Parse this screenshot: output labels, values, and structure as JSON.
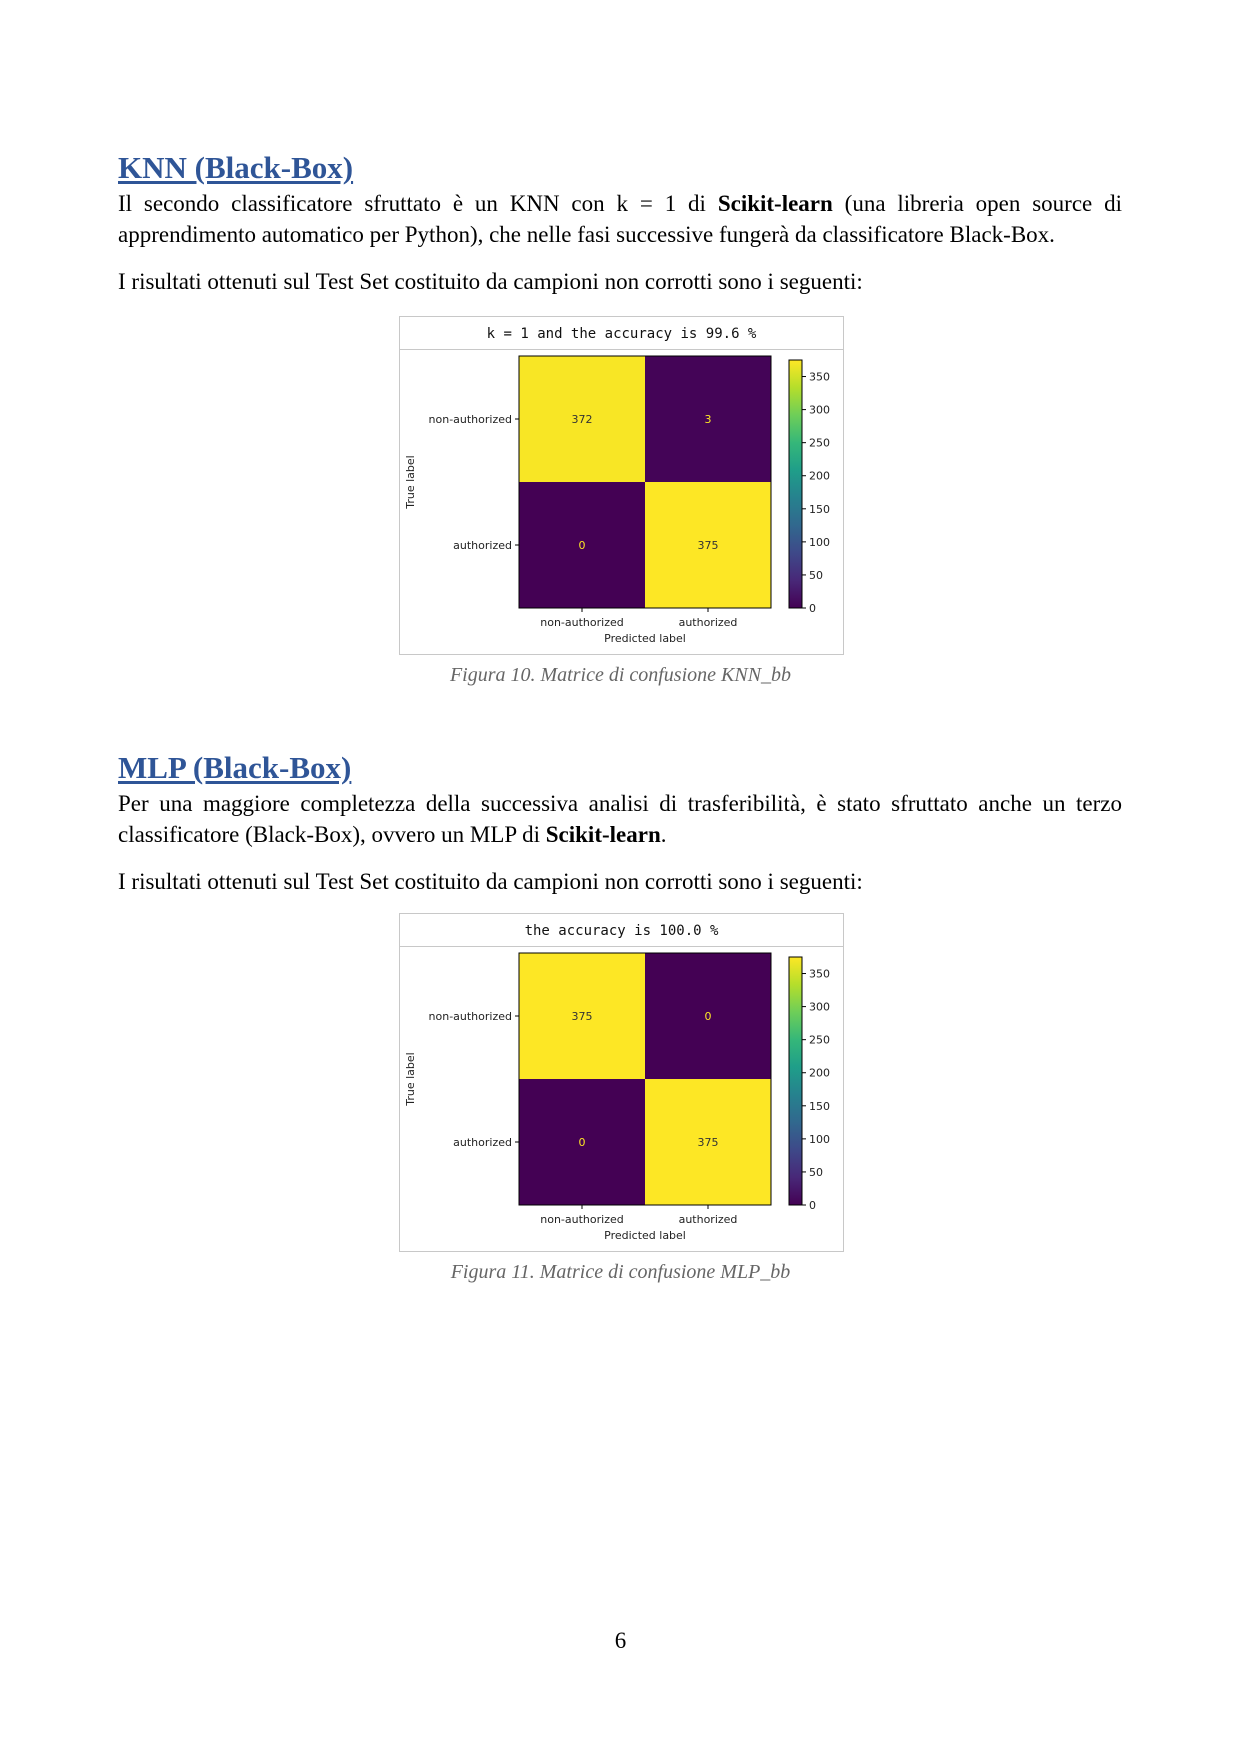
{
  "sections": [
    {
      "title": "KNN (Black-Box)",
      "para1": {
        "before": "Il secondo classificatore sfruttato è un KNN con k = 1 di ",
        "bold": "Scikit-learn",
        "after": " (una libreria open source di apprendimento automatico per Python), che nelle fasi successive fungerà da classificatore Black-Box."
      },
      "para2": "I risultati ottenuti sul Test Set costituito da campioni non corrotti sono i seguenti:",
      "figure_header": "k = 1 and the accuracy is 99.6 %",
      "caption": "Figura 10. Matrice di confusione KNN_bb"
    },
    {
      "title": "MLP (Black-Box)",
      "para1": {
        "before": "Per una maggiore completezza della successiva analisi di trasferibilità, è stato sfruttato anche un terzo classificatore (Black-Box), ovvero un MLP di ",
        "bold": "Scikit-learn",
        "after": "."
      },
      "para2": "I risultati ottenuti sul Test Set costituito da campioni non corrotti sono i seguenti:",
      "figure_header": "the accuracy is 100.0 %",
      "caption": "Figura 11. Matrice di confusione MLP_bb"
    }
  ],
  "page_number": "6",
  "chart_data": [
    {
      "type": "heatmap",
      "title": "k = 1 and the accuracy is 99.6 %",
      "xlabel": "Predicted label",
      "ylabel": "True label",
      "x_categories": [
        "non-authorized",
        "authorized"
      ],
      "y_categories": [
        "non-authorized",
        "authorized"
      ],
      "values": [
        [
          372,
          3
        ],
        [
          0,
          375
        ]
      ],
      "colorbar_ticks": [
        0,
        50,
        100,
        150,
        200,
        250,
        300,
        350
      ],
      "vmin": 0,
      "vmax": 375,
      "colormap": "viridis",
      "colors": {
        "low": "#440154",
        "high": "#fde725"
      }
    },
    {
      "type": "heatmap",
      "title": "the accuracy is 100.0 %",
      "xlabel": "Predicted label",
      "ylabel": "True label",
      "x_categories": [
        "non-authorized",
        "authorized"
      ],
      "y_categories": [
        "non-authorized",
        "authorized"
      ],
      "values": [
        [
          375,
          0
        ],
        [
          0,
          375
        ]
      ],
      "colorbar_ticks": [
        0,
        50,
        100,
        150,
        200,
        250,
        300,
        350
      ],
      "vmin": 0,
      "vmax": 375,
      "colormap": "viridis",
      "colors": {
        "low": "#440154",
        "high": "#fde725"
      }
    }
  ]
}
